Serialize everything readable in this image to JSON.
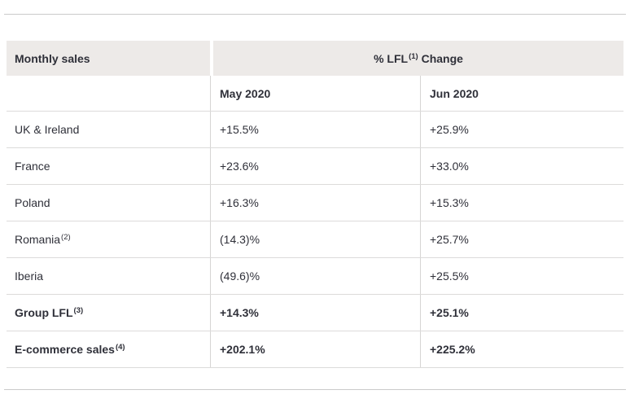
{
  "page": {
    "background": "#ffffff",
    "rule_color": "#cacaca"
  },
  "table": {
    "colors": {
      "header_bg": "#edeae8",
      "text": "#2f3039",
      "row_border": "#dcdbda",
      "column_border": "#d6d5d4"
    },
    "header": {
      "left_label": "Monthly sales",
      "right_prefix": "% LFL",
      "right_sup": "(1)",
      "right_suffix": " Change"
    },
    "subheader": {
      "may_label": "May 2020",
      "jun_label": "Jun 2020"
    },
    "rows": [
      {
        "label": "UK & Ireland",
        "sup": "",
        "may": "+15.5%",
        "jun": "+25.9%",
        "bold": false
      },
      {
        "label": "France",
        "sup": "",
        "may": "+23.6%",
        "jun": "+33.0%",
        "bold": false
      },
      {
        "label": "Poland",
        "sup": "",
        "may": "+16.3%",
        "jun": "+15.3%",
        "bold": false
      },
      {
        "label": "Romania",
        "sup": "(2)",
        "may": "(14.3)%",
        "jun": "+25.7%",
        "bold": false
      },
      {
        "label": "Iberia",
        "sup": "",
        "may": "(49.6)%",
        "jun": "+25.5%",
        "bold": false
      },
      {
        "label": "Group LFL",
        "sup": "(3)",
        "may": "+14.3%",
        "jun": "+25.1%",
        "bold": true
      },
      {
        "label": "E-commerce sales",
        "sup": "(4)",
        "may": "+202.1%",
        "jun": "+225.2%",
        "bold": true
      }
    ]
  },
  "chart_data": {
    "type": "table",
    "title": "Monthly sales — % LFL(1) Change",
    "columns": [
      "Monthly sales",
      "May 2020",
      "Jun 2020"
    ],
    "rows": [
      [
        "UK & Ireland",
        "+15.5%",
        "+25.9%"
      ],
      [
        "France",
        "+23.6%",
        "+33.0%"
      ],
      [
        "Poland",
        "+16.3%",
        "+15.3%"
      ],
      [
        "Romania(2)",
        "(14.3)%",
        "+25.7%"
      ],
      [
        "Iberia",
        "(49.6)%",
        "+25.5%"
      ],
      [
        "Group LFL(3)",
        "+14.3%",
        "+25.1%"
      ],
      [
        "E-commerce sales(4)",
        "+202.1%",
        "+225.2%"
      ]
    ],
    "series": [
      {
        "name": "May 2020",
        "values": [
          15.5,
          23.6,
          16.3,
          -14.3,
          -49.6,
          14.3,
          202.1
        ]
      },
      {
        "name": "Jun 2020",
        "values": [
          25.9,
          33.0,
          15.3,
          25.7,
          25.5,
          25.1,
          225.2
        ]
      }
    ],
    "categories": [
      "UK & Ireland",
      "France",
      "Poland",
      "Romania",
      "Iberia",
      "Group LFL",
      "E-commerce sales"
    ],
    "footnote_markers": [
      "(1)",
      "(2)",
      "(3)",
      "(4)"
    ]
  }
}
